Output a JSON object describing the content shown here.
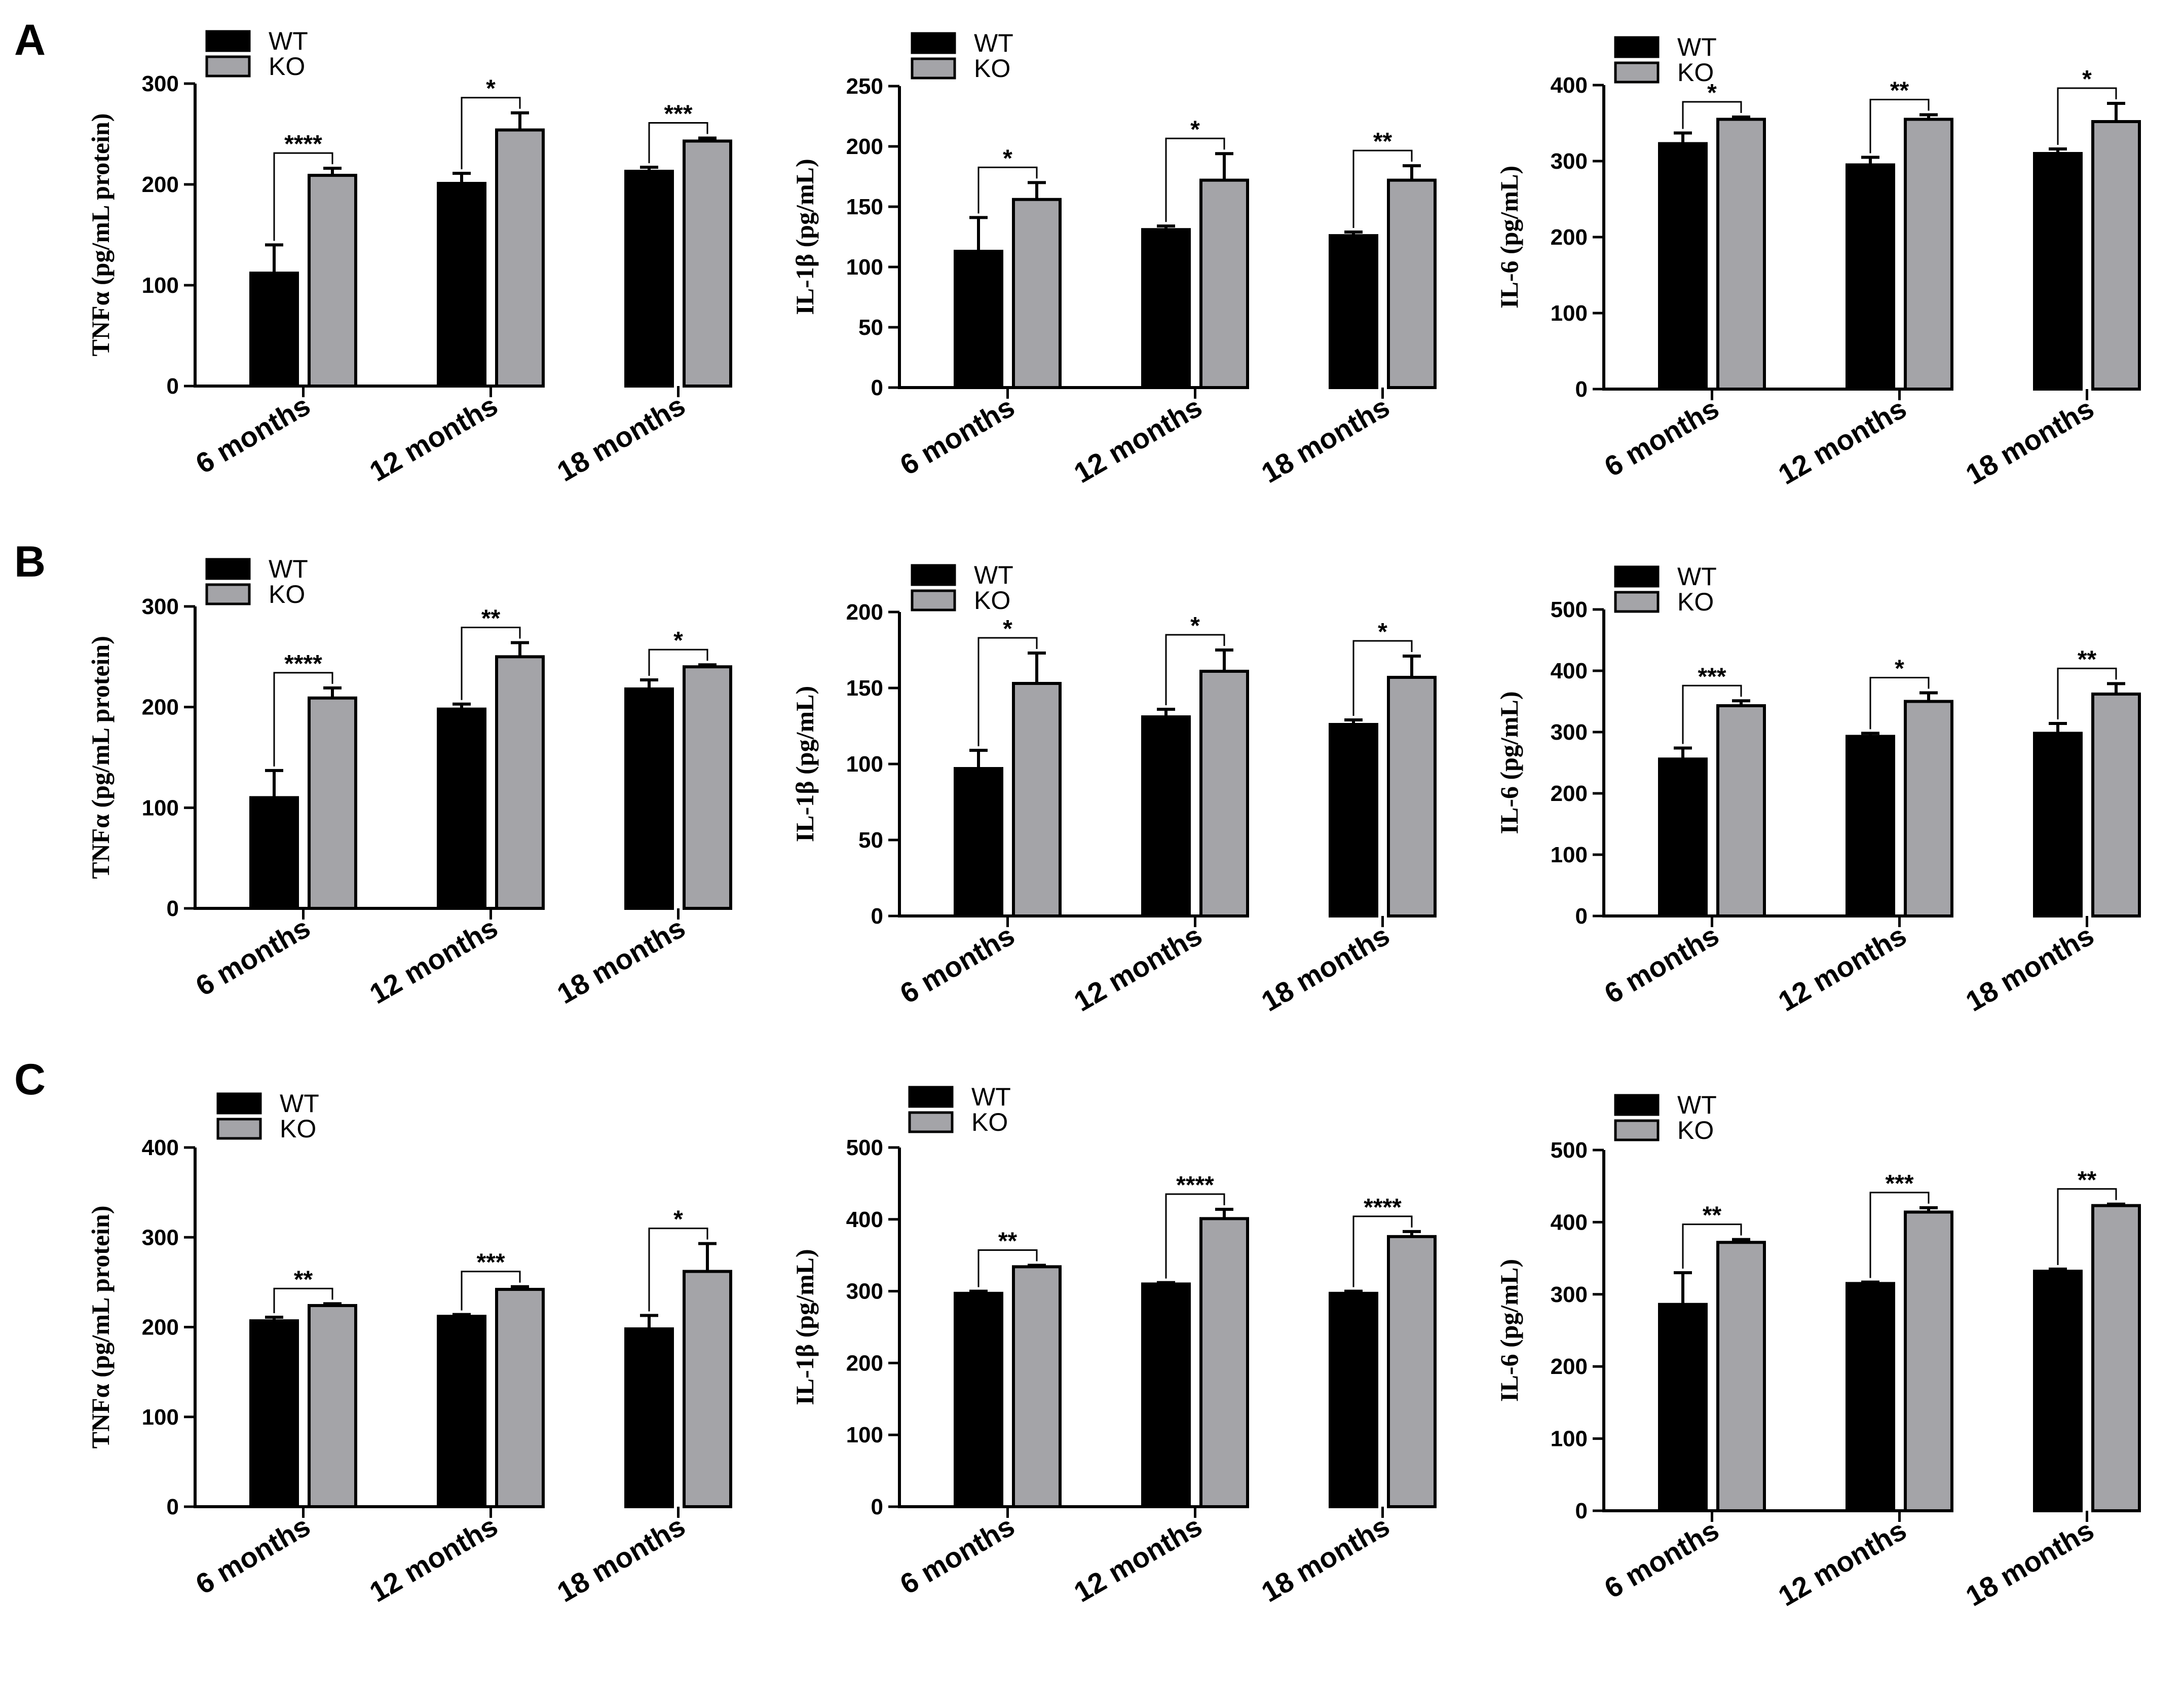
{
  "colors": {
    "wt": "#000000",
    "ko": "#a4a4a8"
  },
  "panel_labels": [
    "A",
    "B",
    "C"
  ],
  "chart_data": [
    {
      "type": "bar",
      "panel": "A",
      "xlabel": "",
      "ylabel": "TNFα (pg/mL protein)",
      "ylim": [
        0,
        300
      ],
      "yticks": [
        0,
        100,
        200,
        300
      ],
      "categories": [
        "6 months",
        "12 months",
        "18 months"
      ],
      "series": [
        {
          "name": "WT",
          "values": [
            112,
            201,
            213
          ],
          "errors": [
            28,
            10,
            4
          ]
        },
        {
          "name": "KO",
          "values": [
            209,
            254,
            243
          ],
          "errors": [
            7,
            17,
            3
          ]
        }
      ],
      "legend": [
        "WT",
        "KO"
      ],
      "significance": [
        "****",
        "*",
        "***"
      ]
    },
    {
      "type": "bar",
      "panel": "A",
      "xlabel": "",
      "ylabel": "IL-1β (pg/mL)",
      "ylim": [
        0,
        250
      ],
      "yticks": [
        0,
        50,
        100,
        150,
        200,
        250
      ],
      "categories": [
        "6 months",
        "12 months",
        "18 months"
      ],
      "series": [
        {
          "name": "WT",
          "values": [
            113,
            131,
            126
          ],
          "errors": [
            28,
            3,
            3
          ]
        },
        {
          "name": "KO",
          "values": [
            156,
            172,
            172
          ],
          "errors": [
            14,
            22,
            12
          ]
        }
      ],
      "legend": [
        "WT",
        "KO"
      ],
      "significance": [
        "*",
        "*",
        "**"
      ]
    },
    {
      "type": "bar",
      "panel": "A",
      "xlabel": "",
      "ylabel": "IL-6 (pg/mL)",
      "ylim": [
        0,
        400
      ],
      "yticks": [
        0,
        100,
        200,
        300,
        400
      ],
      "categories": [
        "6 months",
        "12 months",
        "18 months"
      ],
      "series": [
        {
          "name": "WT",
          "values": [
            323,
            295,
            310
          ],
          "errors": [
            14,
            10,
            6
          ]
        },
        {
          "name": "KO",
          "values": [
            355,
            355,
            352
          ],
          "errors": [
            3,
            6,
            24
          ]
        }
      ],
      "legend": [
        "WT",
        "KO"
      ],
      "significance": [
        "*",
        "**",
        "*"
      ]
    },
    {
      "type": "bar",
      "panel": "B",
      "xlabel": "",
      "ylabel": "TNFα (pg/mL protein)",
      "ylim": [
        0,
        300
      ],
      "yticks": [
        0,
        100,
        200,
        300
      ],
      "categories": [
        "6 months",
        "12 months",
        "18 months"
      ],
      "series": [
        {
          "name": "WT",
          "values": [
            110,
            198,
            218
          ],
          "errors": [
            27,
            5,
            9
          ]
        },
        {
          "name": "KO",
          "values": [
            209,
            250,
            240
          ],
          "errors": [
            10,
            14,
            2
          ]
        }
      ],
      "legend": [
        "WT",
        "KO"
      ],
      "significance": [
        "****",
        "**",
        "*"
      ]
    },
    {
      "type": "bar",
      "panel": "B",
      "xlabel": "",
      "ylabel": "IL-1β (pg/mL)",
      "ylim": [
        0,
        200
      ],
      "yticks": [
        0,
        50,
        100,
        150,
        200
      ],
      "categories": [
        "6 months",
        "12 months",
        "18 months"
      ],
      "series": [
        {
          "name": "WT",
          "values": [
            97,
            131,
            126
          ],
          "errors": [
            12,
            5,
            3
          ]
        },
        {
          "name": "KO",
          "values": [
            153,
            161,
            157
          ],
          "errors": [
            20,
            14,
            14
          ]
        }
      ],
      "legend": [
        "WT",
        "KO"
      ],
      "significance": [
        "*",
        "*",
        "*"
      ]
    },
    {
      "type": "bar",
      "panel": "B",
      "xlabel": "",
      "ylabel": "IL-6 (pg/mL)",
      "ylim": [
        0,
        500
      ],
      "yticks": [
        0,
        100,
        200,
        300,
        400,
        500
      ],
      "categories": [
        "6 months",
        "12 months",
        "18 months"
      ],
      "series": [
        {
          "name": "WT",
          "values": [
            256,
            293,
            298
          ],
          "errors": [
            18,
            5,
            16
          ]
        },
        {
          "name": "KO",
          "values": [
            343,
            350,
            362
          ],
          "errors": [
            8,
            14,
            17
          ]
        }
      ],
      "legend": [
        "WT",
        "KO"
      ],
      "significance": [
        "***",
        "*",
        "**"
      ]
    },
    {
      "type": "bar",
      "panel": "C",
      "xlabel": "",
      "ylabel": "TNFα (pg/mL protein)",
      "ylim": [
        0,
        400
      ],
      "yticks": [
        0,
        100,
        200,
        300,
        400
      ],
      "categories": [
        "6 months",
        "12 months",
        "18 months"
      ],
      "series": [
        {
          "name": "WT",
          "values": [
            207,
            212,
            198
          ],
          "errors": [
            4,
            2,
            15
          ]
        },
        {
          "name": "KO",
          "values": [
            224,
            242,
            262
          ],
          "errors": [
            2,
            3,
            31
          ]
        }
      ],
      "legend": [
        "WT",
        "KO"
      ],
      "significance": [
        "**",
        "***",
        "*"
      ]
    },
    {
      "type": "bar",
      "panel": "C",
      "xlabel": "",
      "ylabel": "IL-1β (pg/mL)",
      "ylim": [
        0,
        500
      ],
      "yticks": [
        0,
        100,
        200,
        300,
        400,
        500
      ],
      "categories": [
        "6 months",
        "12 months",
        "18 months"
      ],
      "series": [
        {
          "name": "WT",
          "values": [
            297,
            310,
            297
          ],
          "errors": [
            3,
            2,
            3
          ]
        },
        {
          "name": "KO",
          "values": [
            334,
            401,
            376
          ],
          "errors": [
            2,
            13,
            7
          ]
        }
      ],
      "legend": [
        "WT",
        "KO"
      ],
      "significance": [
        "**",
        "****",
        "****"
      ]
    },
    {
      "type": "bar",
      "panel": "C",
      "xlabel": "",
      "ylabel": "IL-6 (pg/mL)",
      "ylim": [
        0,
        500
      ],
      "yticks": [
        0,
        100,
        200,
        300,
        400,
        500
      ],
      "categories": [
        "6 months",
        "12 months",
        "18 months"
      ],
      "series": [
        {
          "name": "WT",
          "values": [
            286,
            315,
            332
          ],
          "errors": [
            44,
            2,
            3
          ]
        },
        {
          "name": "KO",
          "values": [
            372,
            414,
            423
          ],
          "errors": [
            4,
            6,
            2
          ]
        }
      ],
      "legend": [
        "WT",
        "KO"
      ],
      "significance": [
        "**",
        "***",
        "**"
      ]
    }
  ]
}
